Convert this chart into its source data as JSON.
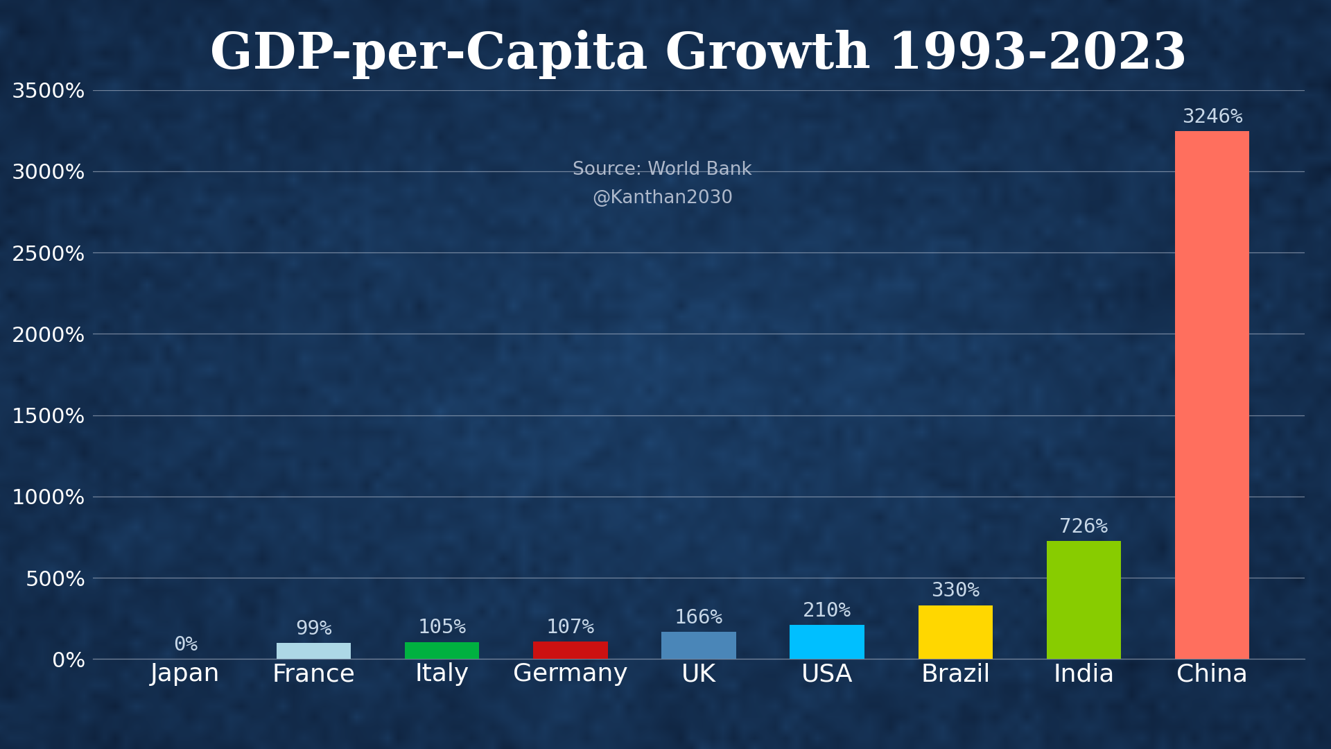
{
  "title": "GDP-per-Capita Growth 1993-2023",
  "source_line1": "Source: World Bank",
  "source_line2": "@Kanthan2030",
  "categories": [
    "Japan",
    "France",
    "Italy",
    "Germany",
    "UK",
    "USA",
    "Brazil",
    "India",
    "China"
  ],
  "values": [
    0,
    99,
    105,
    107,
    166,
    210,
    330,
    726,
    3246
  ],
  "bar_colors": [
    "#b8cfe8",
    "#add8e6",
    "#00b140",
    "#cc1111",
    "#4a86b8",
    "#00bfff",
    "#ffd700",
    "#88cc00",
    "#ff6f5e"
  ],
  "label_color": "#c8d8e8",
  "title_color": "#ffffff",
  "source_color": "#c0c8d8",
  "bg_color_dark": "#0d1e35",
  "bg_color_mid": "#1a3055",
  "bg_color_light": "#1e3a66",
  "grid_color": "#c0c8d8",
  "tick_color": "#ffffff",
  "ylim": [
    0,
    3500
  ],
  "yticks": [
    0,
    500,
    1000,
    1500,
    2000,
    2500,
    3000,
    3500
  ],
  "ytick_labels": [
    "0%",
    "500%",
    "1000%",
    "1500%",
    "2000%",
    "2500%",
    "3000%",
    "3500%"
  ],
  "title_fontsize": 52,
  "source_fontsize": 19,
  "tick_fontsize": 22,
  "bar_label_fontsize": 21,
  "xlabel_fontsize": 26
}
